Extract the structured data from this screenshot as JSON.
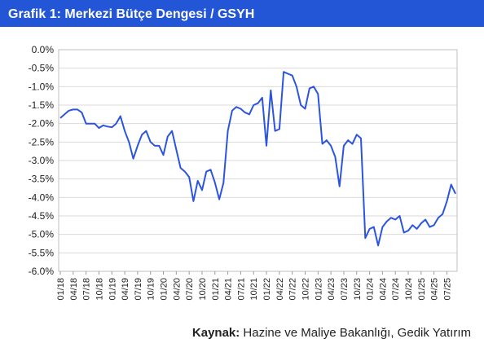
{
  "chart_data": {
    "type": "line",
    "title": "Grafik 1: Merkezi Bütçe Dengesi / GSYH",
    "source": {
      "label": "Kaynak:",
      "text": "Hazine ve Maliye Bakanlığı, Gedik Yatırım"
    },
    "color": "#2b55e0",
    "grid": true,
    "categories": [
      "01/18",
      null,
      null,
      "04/18",
      null,
      null,
      "07/18",
      null,
      null,
      "10/18",
      null,
      null,
      "01/19",
      null,
      null,
      "04/19",
      null,
      null,
      "07/19",
      null,
      null,
      "10/19",
      null,
      null,
      "01/20",
      null,
      null,
      "04/20",
      null,
      null,
      "07/20",
      null,
      null,
      "10/20",
      null,
      null,
      "01/21",
      null,
      null,
      "04/21",
      null,
      null,
      "07/21",
      null,
      null,
      "10/21",
      null,
      null,
      "01/22",
      null,
      null,
      "04/22",
      null,
      null,
      "07/22",
      null,
      null,
      "10/22",
      null,
      null,
      "01/23",
      null,
      null,
      "04/23",
      null,
      null,
      "07/23",
      null,
      null,
      "10/23",
      null,
      null,
      "01/24",
      null,
      null,
      "04/24",
      null,
      null,
      "07/24",
      null,
      null,
      "10/24",
      null,
      null,
      "01/25",
      null,
      null,
      "04/25",
      null,
      null,
      "07/25",
      null,
      null
    ],
    "values": [
      -1.85,
      -1.75,
      -1.65,
      -1.62,
      -1.62,
      -1.7,
      -2.0,
      -2.0,
      -2.0,
      -2.12,
      -2.05,
      -2.08,
      -2.1,
      -2.0,
      -1.8,
      -2.2,
      -2.5,
      -2.95,
      -2.6,
      -2.3,
      -2.2,
      -2.5,
      -2.6,
      -2.6,
      -2.85,
      -2.35,
      -2.2,
      -2.7,
      -3.2,
      -3.3,
      -3.45,
      -4.1,
      -3.55,
      -3.8,
      -3.3,
      -3.25,
      -3.6,
      -4.05,
      -3.6,
      -2.2,
      -1.65,
      -1.55,
      -1.6,
      -1.7,
      -1.75,
      -1.5,
      -1.45,
      -1.3,
      -2.6,
      -1.1,
      -2.2,
      -2.15,
      -0.6,
      -0.65,
      -0.7,
      -1.0,
      -1.5,
      -1.6,
      -1.05,
      -1.0,
      -1.2,
      -2.55,
      -2.45,
      -2.6,
      -2.9,
      -3.7,
      -2.6,
      -2.45,
      -2.55,
      -2.3,
      -2.4,
      -5.1,
      -4.85,
      -4.8,
      -5.3,
      -4.8,
      -4.65,
      -4.55,
      -4.6,
      -4.5,
      -4.95,
      -4.9,
      -4.75,
      -4.85,
      -4.7,
      -4.6,
      -4.8,
      -4.75,
      -4.55,
      -4.45,
      -4.1,
      -3.65,
      -3.9
    ],
    "ylim": [
      -6,
      0
    ],
    "yticks": [
      {
        "value": 0,
        "label": "0.0%"
      },
      {
        "value": -0.5,
        "label": "-0.5%"
      },
      {
        "value": -1,
        "label": "-1.0%"
      },
      {
        "value": -1.5,
        "label": "-1.5%"
      },
      {
        "value": -2,
        "label": "-2.0%"
      },
      {
        "value": -2.5,
        "label": "-2.5%"
      },
      {
        "value": -3,
        "label": "-3.0%"
      },
      {
        "value": -3.5,
        "label": "-3.5%"
      },
      {
        "value": -4,
        "label": "-4.0%"
      },
      {
        "value": -4.5,
        "label": "-4.5%"
      },
      {
        "value": -5,
        "label": "-5.0%"
      },
      {
        "value": -5.5,
        "label": "-5.5%"
      },
      {
        "value": -6,
        "label": "-6.0%"
      }
    ]
  }
}
